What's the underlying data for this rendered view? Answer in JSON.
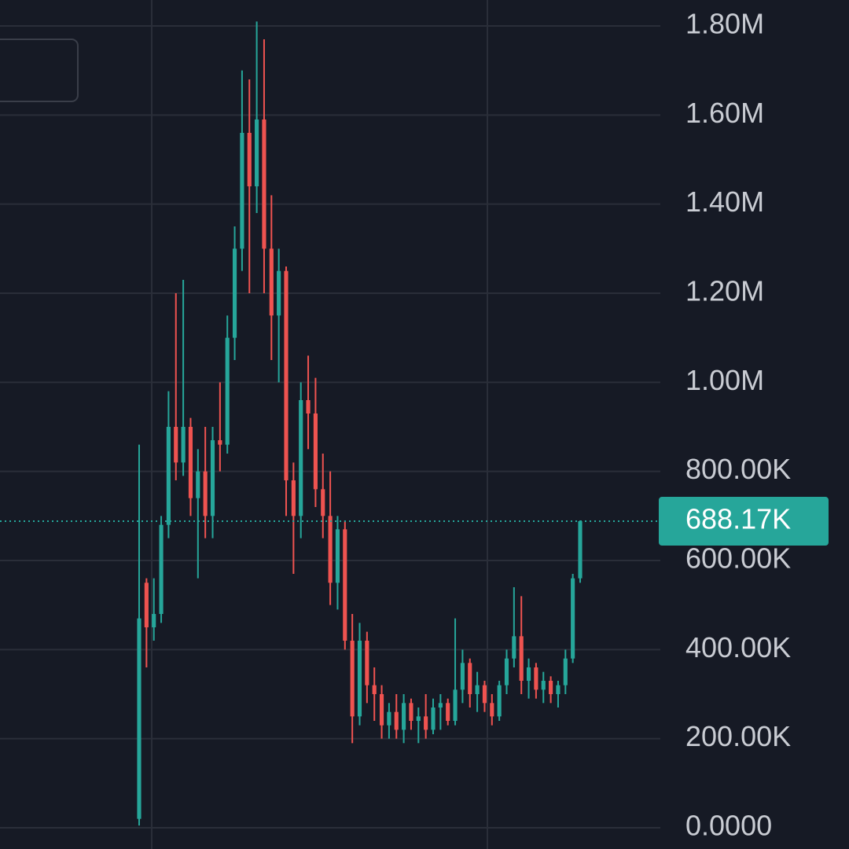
{
  "chart_data": {
    "type": "candlestick",
    "up_color": "#26a69a",
    "down_color": "#ef5350",
    "grid": true,
    "ylim": [
      0,
      1800000
    ],
    "yticks": [
      {
        "value": 0,
        "label": "0.0000"
      },
      {
        "value": 200000,
        "label": "200.00K"
      },
      {
        "value": 400000,
        "label": "400.00K"
      },
      {
        "value": 600000,
        "label": "600.00K"
      },
      {
        "value": 800000,
        "label": "800.00K"
      },
      {
        "value": 1000000,
        "label": "1.00M"
      },
      {
        "value": 1200000,
        "label": "1.20M"
      },
      {
        "value": 1400000,
        "label": "1.40M"
      },
      {
        "value": 1600000,
        "label": "1.60M"
      },
      {
        "value": 1800000,
        "label": "1.80M"
      }
    ],
    "last_price": {
      "value": 688170,
      "label": "688.17K"
    },
    "open": [
      20000,
      550000,
      450000,
      480000,
      680000,
      900000,
      820000,
      900000,
      740000,
      800000,
      700000,
      870000,
      860000,
      1100000,
      1300000,
      1560000,
      1440000,
      1590000,
      1300000,
      1150000,
      1250000,
      780000,
      700000,
      960000,
      930000,
      760000,
      700000,
      550000,
      670000,
      420000,
      250000,
      420000,
      320000,
      300000,
      230000,
      260000,
      220000,
      280000,
      240000,
      250000,
      220000,
      270000,
      280000,
      240000,
      310000,
      370000,
      300000,
      320000,
      280000,
      250000,
      320000,
      380000,
      430000,
      330000,
      360000,
      310000,
      330000,
      300000,
      320000,
      380000,
      560000
    ],
    "high": [
      860000,
      560000,
      560000,
      700000,
      980000,
      1200000,
      1230000,
      920000,
      850000,
      900000,
      900000,
      1000000,
      1150000,
      1350000,
      1700000,
      1680000,
      1810000,
      1770000,
      1420000,
      1300000,
      1260000,
      820000,
      1000000,
      1060000,
      1010000,
      840000,
      800000,
      700000,
      690000,
      480000,
      460000,
      440000,
      360000,
      320000,
      280000,
      300000,
      300000,
      290000,
      270000,
      300000,
      290000,
      300000,
      290000,
      470000,
      400000,
      380000,
      350000,
      330000,
      300000,
      330000,
      400000,
      540000,
      520000,
      380000,
      370000,
      350000,
      340000,
      330000,
      400000,
      570000,
      690000
    ],
    "low": [
      5000,
      360000,
      420000,
      460000,
      650000,
      780000,
      790000,
      700000,
      560000,
      650000,
      650000,
      800000,
      840000,
      1050000,
      1250000,
      1200000,
      1380000,
      1200000,
      1050000,
      1000000,
      700000,
      570000,
      650000,
      850000,
      720000,
      650000,
      500000,
      490000,
      400000,
      190000,
      230000,
      280000,
      240000,
      200000,
      200000,
      200000,
      190000,
      220000,
      190000,
      200000,
      210000,
      220000,
      230000,
      230000,
      280000,
      270000,
      260000,
      260000,
      230000,
      240000,
      300000,
      360000,
      300000,
      290000,
      290000,
      280000,
      280000,
      270000,
      300000,
      370000,
      550000
    ],
    "close": [
      470000,
      450000,
      480000,
      680000,
      900000,
      820000,
      900000,
      740000,
      800000,
      700000,
      870000,
      860000,
      1100000,
      1300000,
      1560000,
      1440000,
      1590000,
      1300000,
      1150000,
      1250000,
      780000,
      700000,
      960000,
      930000,
      760000,
      700000,
      550000,
      670000,
      420000,
      250000,
      420000,
      320000,
      300000,
      230000,
      260000,
      220000,
      280000,
      240000,
      250000,
      220000,
      270000,
      280000,
      240000,
      310000,
      370000,
      300000,
      320000,
      280000,
      250000,
      320000,
      380000,
      430000,
      330000,
      360000,
      310000,
      330000,
      300000,
      320000,
      380000,
      560000,
      688170
    ]
  }
}
